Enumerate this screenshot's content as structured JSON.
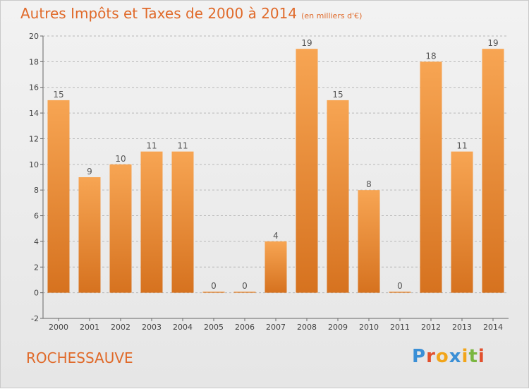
{
  "header": {
    "title": "Autres Impôts et Taxes de 2000 à 2014",
    "unit": "(en milliers d'€)"
  },
  "footer": {
    "location": "ROCHESSAUVE",
    "brand_letters": [
      "P",
      "r",
      "o",
      "x",
      "i",
      "t",
      "i"
    ],
    "brand_colors": [
      "#3a8fd6",
      "#e2502d",
      "#f2a51a",
      "#3a8fd6",
      "#f2a51a",
      "#7ab640",
      "#e2502d"
    ]
  },
  "colors": {
    "bar_top": "#f7a553",
    "bar_bottom": "#d6721f",
    "text_accent": "#e06a2a"
  },
  "chart_data": {
    "type": "bar",
    "categories": [
      "2000",
      "2001",
      "2002",
      "2003",
      "2004",
      "2005",
      "2006",
      "2007",
      "2008",
      "2009",
      "2010",
      "2011",
      "2012",
      "2013",
      "2014"
    ],
    "values": [
      15,
      9,
      10,
      11,
      11,
      0,
      0,
      4,
      19,
      15,
      8,
      0,
      18,
      11,
      19
    ],
    "data_labels": [
      "15",
      "9",
      "10",
      "11",
      "11",
      "0",
      "0",
      "4",
      "19",
      "15",
      "8",
      "0",
      "18",
      "11",
      "19"
    ],
    "yticks": [
      -2,
      0,
      2,
      4,
      6,
      8,
      10,
      12,
      14,
      16,
      18,
      20
    ],
    "ylim": [
      -2,
      20
    ],
    "grid": "horizontal dashed",
    "legend": "none"
  }
}
